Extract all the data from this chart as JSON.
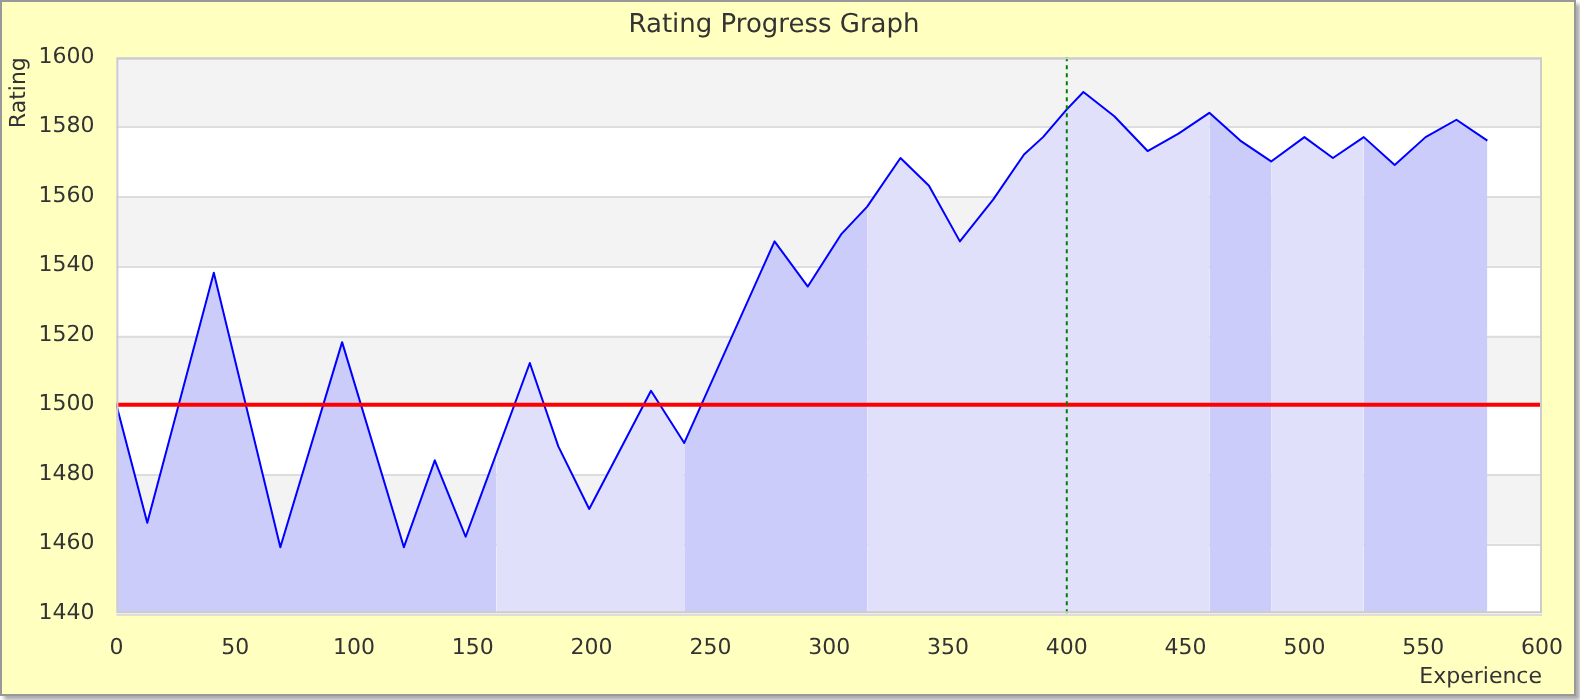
{
  "chart_data": {
    "type": "area",
    "title": "Rating Progress Graph",
    "xlabel": "Experience",
    "ylabel": "Rating",
    "xlim": [
      0,
      600
    ],
    "xticks": [
      0,
      50,
      100,
      150,
      200,
      250,
      300,
      350,
      400,
      450,
      500,
      550,
      600
    ],
    "ylim": [
      1440,
      1600
    ],
    "yticks": [
      1440,
      1460,
      1480,
      1500,
      1520,
      1540,
      1560,
      1580,
      1600
    ],
    "grid": "y",
    "legend": false,
    "series": [
      {
        "color": "#ccccfa",
        "x": [
          0,
          13,
          41,
          69,
          95,
          121,
          134,
          147,
          160
        ],
        "values": [
          1500,
          1466,
          1538,
          1459,
          1518,
          1459,
          1484,
          1462,
          1486
        ]
      },
      {
        "color": "#e0e0fa",
        "x": [
          160,
          174,
          186,
          199,
          225,
          239
        ],
        "values": [
          1486,
          1512,
          1488,
          1470,
          1504,
          1489
        ]
      },
      {
        "color": "#ccccfa",
        "x": [
          239,
          277,
          291,
          305,
          316
        ],
        "values": [
          1489,
          1547,
          1534,
          1549,
          1557
        ]
      },
      {
        "color": "#e0e0fa",
        "x": [
          316,
          330,
          342,
          355,
          369,
          382,
          390,
          400,
          407,
          420,
          434,
          447,
          460
        ],
        "values": [
          1557,
          1571,
          1563,
          1547,
          1559,
          1572,
          1577,
          1585,
          1590,
          1583,
          1573,
          1578,
          1584
        ]
      },
      {
        "color": "#ccccfa",
        "x": [
          460,
          473,
          486
        ],
        "values": [
          1584,
          1576,
          1570
        ]
      },
      {
        "color": "#e0e0fa",
        "x": [
          486,
          500,
          512,
          525
        ],
        "values": [
          1570,
          1577,
          1571,
          1577
        ]
      },
      {
        "color": "#ccccfa",
        "x": [
          525,
          538,
          551,
          564,
          577
        ],
        "values": [
          1577,
          1569,
          1577,
          1582,
          1576
        ]
      },
      {
        "type": "line",
        "color": "#0000ff",
        "marker": "none",
        "line_style": "solid",
        "x": [
          0,
          13,
          41,
          69,
          95,
          121,
          134,
          147,
          174,
          186,
          199,
          225,
          239,
          277,
          291,
          305,
          316,
          330,
          342,
          355,
          369,
          382,
          390,
          400,
          407,
          420,
          434,
          447,
          460,
          473,
          486,
          500,
          512,
          525,
          538,
          551,
          564,
          577
        ],
        "values": [
          1500,
          1466,
          1538,
          1459,
          1518,
          1459,
          1484,
          1462,
          1512,
          1488,
          1470,
          1504,
          1489,
          1547,
          1534,
          1549,
          1557,
          1571,
          1563,
          1547,
          1559,
          1572,
          1577,
          1585,
          1590,
          1583,
          1573,
          1578,
          1584,
          1576,
          1570,
          1577,
          1571,
          1577,
          1569,
          1577,
          1582,
          1576
        ]
      }
    ],
    "ref_lines": [
      {
        "axis": "y",
        "value": 1500,
        "color": "#ff0000",
        "line_style": "solid"
      },
      {
        "axis": "x",
        "value": 400,
        "color": "#008000",
        "line_style": "dotted"
      }
    ]
  }
}
